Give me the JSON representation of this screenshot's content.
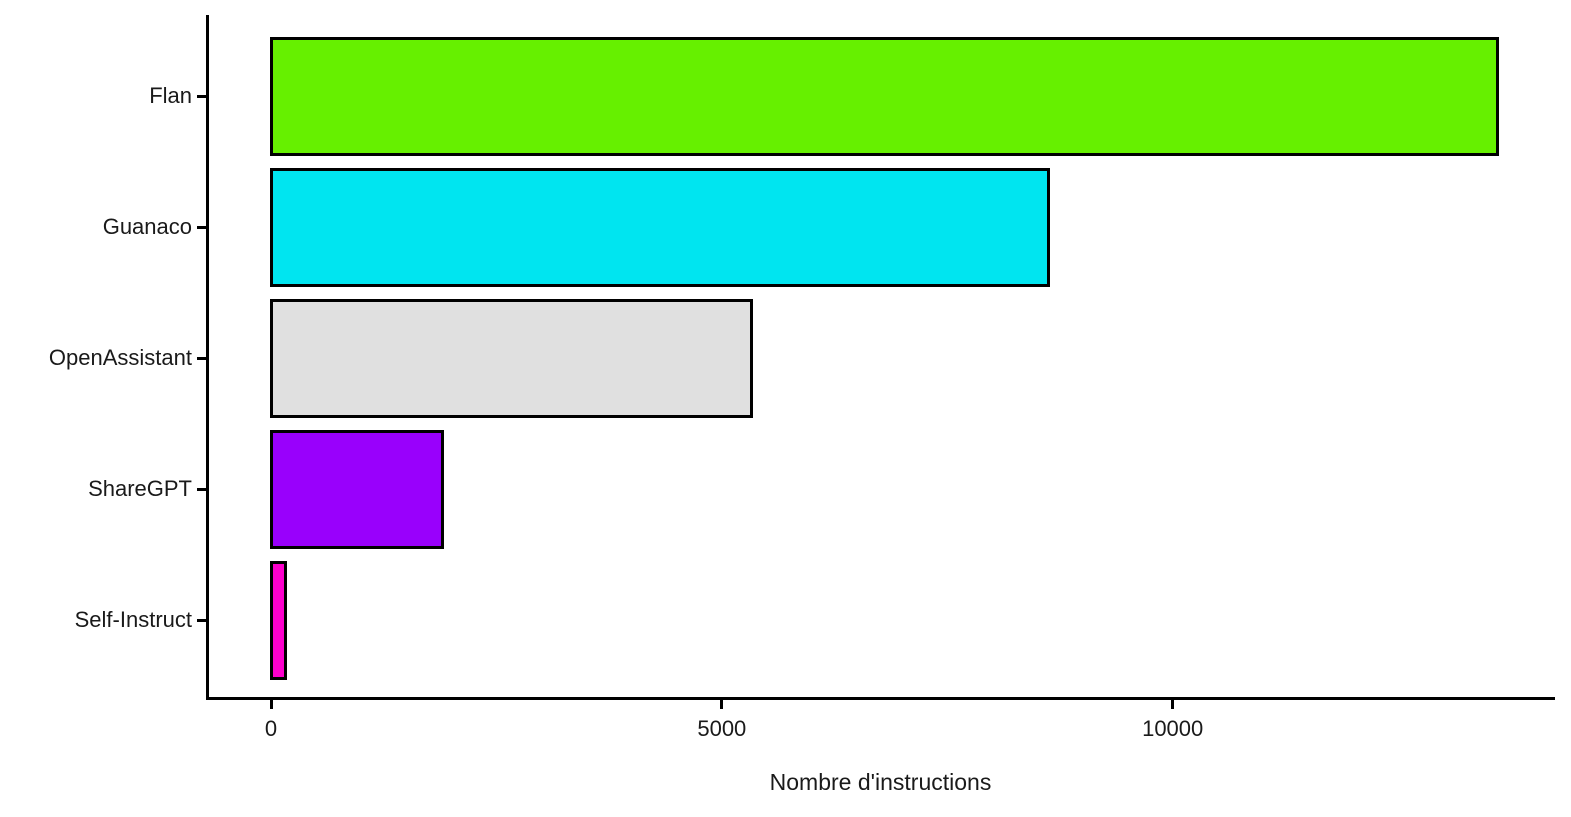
{
  "figure": {
    "background": "#ffffff"
  },
  "chart_data": {
    "type": "bar",
    "orientation": "horizontal",
    "title": "",
    "xlabel": "Nombre d'instructions",
    "ylabel": "",
    "categories": [
      "Flan",
      "Guanaco",
      "OpenAssistant",
      "ShareGPT",
      "Self-Instruct"
    ],
    "values": [
      13600,
      8620,
      5330,
      1900,
      160
    ],
    "bar_colors": [
      "#66F000",
      "#00E5F0",
      "#E0E0E0",
      "#9900FC",
      "#FC00CC"
    ],
    "bar_border_color": "#000000",
    "x_ticks": [
      0,
      5000,
      10000
    ],
    "x_tick_labels": [
      "0",
      "5000",
      "10000"
    ],
    "xlim": [
      0,
      14240
    ],
    "grid": false,
    "legend": false,
    "axis_color": "#000000",
    "text_color": "#1a1a1a"
  }
}
